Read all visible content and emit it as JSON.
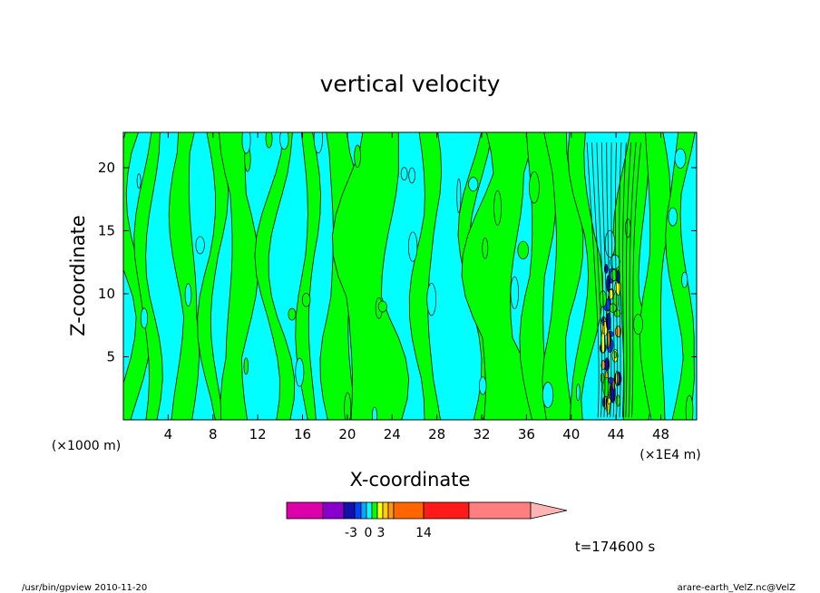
{
  "chart_data": {
    "type": "heatmap",
    "title": "vertical velocity",
    "xlabel": "X-coordinate",
    "ylabel": "Z-coordinate",
    "x_tick_labels": [
      "4",
      "8",
      "12",
      "16",
      "20",
      "24",
      "28",
      "32",
      "36",
      "40",
      "44",
      "48"
    ],
    "x_ticks": [
      4,
      8,
      12,
      16,
      20,
      24,
      28,
      32,
      36,
      40,
      44,
      48
    ],
    "x_unit_left": "(×1000 m)",
    "x_unit_right": "(×1E4 m)",
    "xlim": [
      0,
      51.2
    ],
    "y_tick_labels": [
      "5",
      "10",
      "15",
      "20"
    ],
    "y_ticks": [
      5,
      10,
      15,
      20
    ],
    "ylim": [
      0,
      22.8
    ],
    "time_label": "t=174600 s",
    "colorbar": {
      "tick_labels": [
        "-3",
        "0",
        "3",
        "14"
      ],
      "tick_values": [
        -3,
        0,
        3,
        14
      ],
      "colors": [
        "#dd00aa",
        "#8800cc",
        "#1010aa",
        "#0044ff",
        "#00aaff",
        "#00ffff",
        "#00ff00",
        "#ffff00",
        "#ffcc00",
        "#ff9900",
        "#ff6600",
        "#ff1a1a",
        "#ff7f7f",
        "#ffb4b4"
      ]
    },
    "dominant_colors": {
      "negative": "#00ffff",
      "positive": "#00ff00"
    },
    "updraft_core": {
      "x": 44,
      "z_range": [
        1,
        13
      ]
    }
  },
  "footer": {
    "left": "/usr/bin/gpview  2010-11-20",
    "right": "arare-earth_VelZ.nc@VelZ"
  }
}
